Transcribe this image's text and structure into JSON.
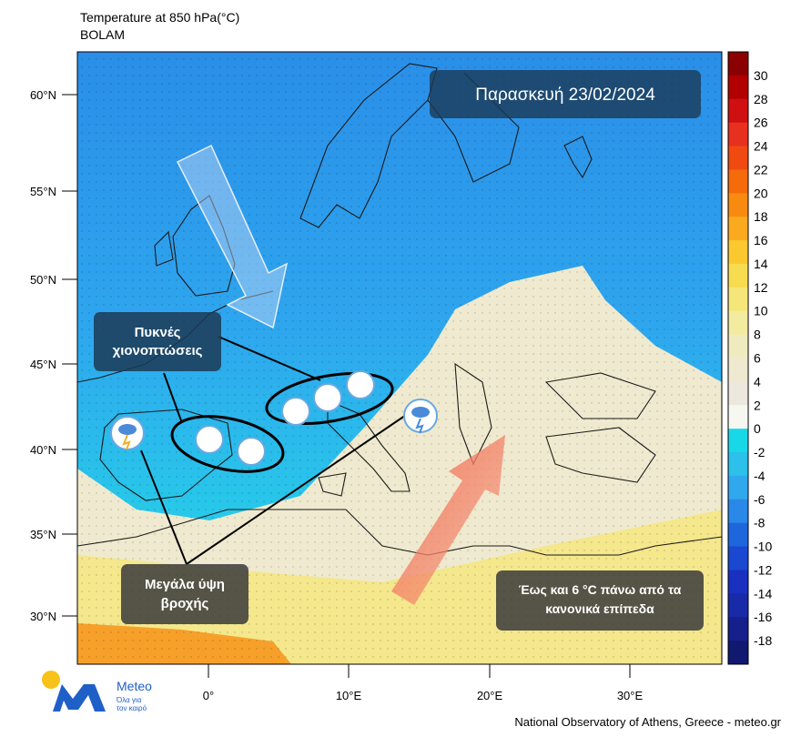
{
  "header": {
    "title": "Temperature at 850 hPa(°C)",
    "model": "BOLAM"
  },
  "map": {
    "date_label": "Παρασκευή 23/02/2024",
    "lat_labels": [
      "60°N",
      "55°N",
      "50°N",
      "45°N",
      "40°N",
      "35°N",
      "30°N"
    ],
    "lon_labels": [
      "0°",
      "10°E",
      "20°E",
      "30°E"
    ],
    "annotations": [
      {
        "lines": [
          "Πυκνές",
          "χιονοπτώσεις"
        ]
      },
      {
        "lines": [
          "Μεγάλα ύψη",
          "βροχής"
        ]
      },
      {
        "lines": [
          "Έως και 6 °C πάνω από τα",
          "κανονικά επίπεδα"
        ]
      }
    ]
  },
  "colorbar": {
    "labels": [
      30,
      28,
      26,
      24,
      22,
      20,
      18,
      16,
      14,
      12,
      10,
      8,
      6,
      4,
      2,
      0,
      -2,
      -4,
      -6,
      -8,
      -10,
      -12,
      -14,
      -16,
      -18
    ],
    "colors": [
      "#8b0000",
      "#b20000",
      "#d01010",
      "#e83020",
      "#f04a10",
      "#f56a0a",
      "#f98a10",
      "#fbaa20",
      "#fbc830",
      "#f8dc50",
      "#f5e67a",
      "#f3eba0",
      "#f0ebbe",
      "#eee9d0",
      "#ece8dd",
      "#f7f7f2",
      "#18d8e8",
      "#2cc0ea",
      "#30a8ee",
      "#2a88e8",
      "#1e66dc",
      "#1a48d0",
      "#1a30c0",
      "#182aa8",
      "#16208c",
      "#101870"
    ]
  },
  "logo": {
    "name": "Meteo",
    "tagline": [
      "Όλα για",
      "τον καιρό"
    ]
  },
  "footer": "National Observatory of Athens, Greece - meteo.gr"
}
